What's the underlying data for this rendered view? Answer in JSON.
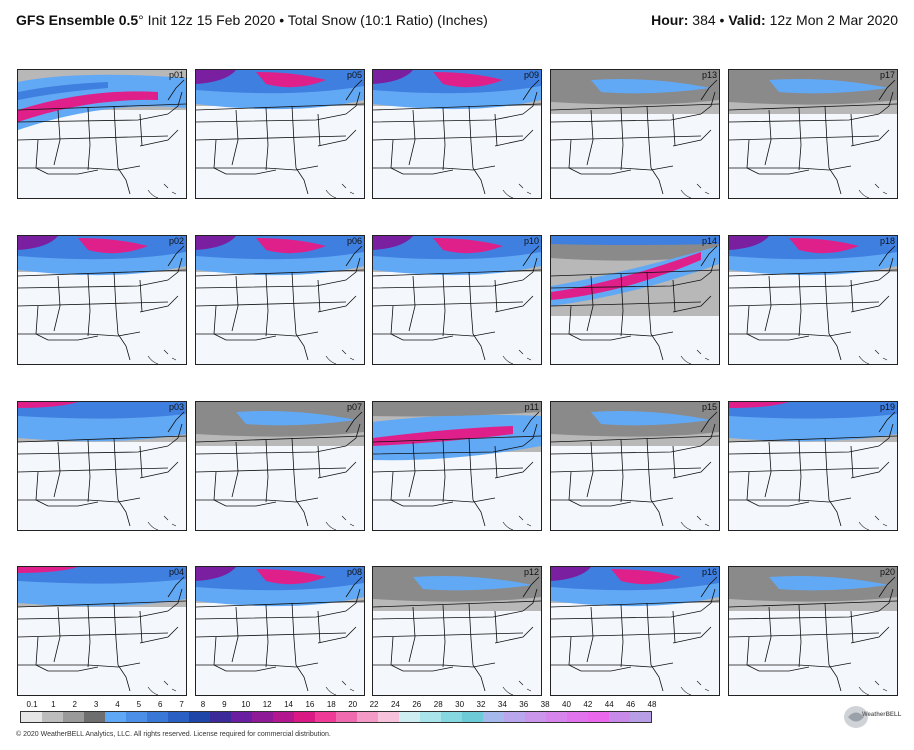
{
  "header": {
    "model": "GFS Ensemble 0.5",
    "degree": "°",
    "init": " Init 12z 15 Feb 2020 • Total Snow (10:1 Ratio) (Inches)",
    "hour_label": "Hour:",
    "hour_value": " 384 • ",
    "valid_label": "Valid:",
    "valid_value": " 12z Mon 2 Mar 2020"
  },
  "panels": [
    {
      "id": "p01",
      "intensity": "heavy-west"
    },
    {
      "id": "p05",
      "intensity": "north-heavy"
    },
    {
      "id": "p09",
      "intensity": "north-heavy"
    },
    {
      "id": "p13",
      "intensity": "north-light"
    },
    {
      "id": "p17",
      "intensity": "north-light"
    },
    {
      "id": "p02",
      "intensity": "north-heavy"
    },
    {
      "id": "p06",
      "intensity": "north-heavy"
    },
    {
      "id": "p10",
      "intensity": "north-heavy"
    },
    {
      "id": "p14",
      "intensity": "south-heavy"
    },
    {
      "id": "p18",
      "intensity": "north-heavy"
    },
    {
      "id": "p03",
      "intensity": "north-medium"
    },
    {
      "id": "p07",
      "intensity": "north-light"
    },
    {
      "id": "p11",
      "intensity": "mid-band"
    },
    {
      "id": "p15",
      "intensity": "north-light"
    },
    {
      "id": "p19",
      "intensity": "north-medium"
    },
    {
      "id": "p04",
      "intensity": "north-medium"
    },
    {
      "id": "p08",
      "intensity": "north-heavy"
    },
    {
      "id": "p12",
      "intensity": "north-light"
    },
    {
      "id": "p16",
      "intensity": "north-heavy"
    },
    {
      "id": "p20",
      "intensity": "north-light"
    }
  ],
  "legend": {
    "labels": [
      "0.1",
      "1",
      "2",
      "3",
      "4",
      "5",
      "6",
      "7",
      "8",
      "9",
      "10",
      "12",
      "14",
      "16",
      "18",
      "20",
      "22",
      "24",
      "26",
      "28",
      "30",
      "32",
      "34",
      "36",
      "38",
      "40",
      "42",
      "44",
      "46",
      "48"
    ],
    "colors": [
      "#e6e6e6",
      "#bdbdbd",
      "#9a9a9a",
      "#6e6e6e",
      "#5fa8f5",
      "#4b8fe8",
      "#3a78d8",
      "#2a5fc4",
      "#1d46a8",
      "#3d2a9a",
      "#6a1fa0",
      "#8f1a98",
      "#b3178f",
      "#d91a85",
      "#ef3a98",
      "#f06ab0",
      "#f49ac6",
      "#f7c3dc",
      "#cfeef2",
      "#a9e4ea",
      "#86d8e0",
      "#6ccbd6",
      "#a5b9ec",
      "#b9a6ec",
      "#c996ec",
      "#d685ec",
      "#e174ec",
      "#e968ec",
      "#c88ae8",
      "#b79ee6"
    ]
  },
  "copyright": "© 2020 WeatherBELL Analytics, LLC. All rights reserved. License required for commercial distribution.",
  "logo_text": "WeatherBELL"
}
